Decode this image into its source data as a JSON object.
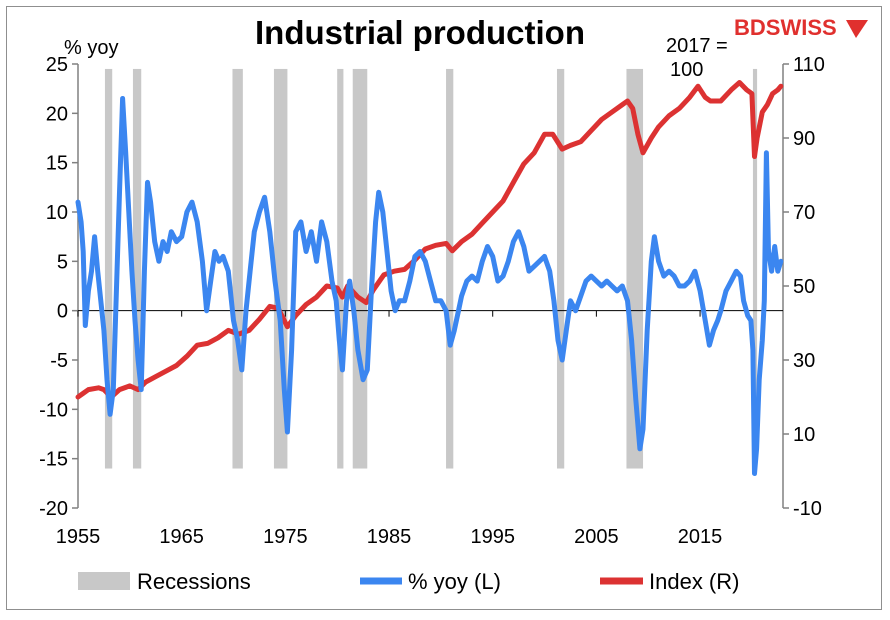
{
  "brand": {
    "name_bd": "BD",
    "name_swiss": "SWISS",
    "color": "#e0302e"
  },
  "colors": {
    "recession": "#c8c8c8",
    "yoy": "#3b86f0",
    "index": "#dc3232",
    "axis": "#808080"
  },
  "chart_data": {
    "type": "line",
    "title": "Industrial production",
    "left_axis": {
      "label": "% yoy",
      "ylim": [
        -20,
        25
      ],
      "ticks": [
        "25",
        "20",
        "15",
        "10",
        "5",
        "0",
        "-5",
        "-10",
        "-15",
        "-20"
      ]
    },
    "right_axis": {
      "label_line1": "2017 =",
      "label_line2": "100",
      "ylim": [
        -10,
        110
      ],
      "ticks": [
        "110",
        "90",
        "70",
        "50",
        "30",
        "10",
        "-10"
      ]
    },
    "xlim": [
      1955,
      2023
    ],
    "x_ticks": [
      "1955",
      "1965",
      "1975",
      "1985",
      "1995",
      "2005",
      "2015"
    ],
    "x_tick_values": [
      1955,
      1965,
      1975,
      1985,
      1995,
      2005,
      2015
    ],
    "recessions": [
      [
        1957.6,
        1958.3
      ],
      [
        1960.3,
        1961.1
      ],
      [
        1969.9,
        1970.9
      ],
      [
        1973.9,
        1975.2
      ],
      [
        1980.0,
        1980.6
      ],
      [
        1981.5,
        1982.9
      ],
      [
        1990.5,
        1991.2
      ],
      [
        2001.2,
        2001.9
      ],
      [
        2007.9,
        2009.5
      ],
      [
        2020.1,
        2020.5
      ]
    ],
    "legend": {
      "recessions": "Recessions",
      "yoy": "% yoy (L)",
      "index": "Index (R)"
    },
    "series": [
      {
        "name": "% yoy (L)",
        "axis": "left",
        "points": [
          [
            1955.0,
            11
          ],
          [
            1955.3,
            9
          ],
          [
            1955.5,
            6
          ],
          [
            1955.7,
            -1.5
          ],
          [
            1956.0,
            2
          ],
          [
            1956.3,
            4
          ],
          [
            1956.6,
            7.5
          ],
          [
            1956.9,
            4
          ],
          [
            1957.2,
            1
          ],
          [
            1957.5,
            -2
          ],
          [
            1957.8,
            -7
          ],
          [
            1958.1,
            -10.5
          ],
          [
            1958.4,
            -8
          ],
          [
            1958.7,
            2
          ],
          [
            1959.0,
            12
          ],
          [
            1959.3,
            21.5
          ],
          [
            1959.6,
            16
          ],
          [
            1959.9,
            10
          ],
          [
            1960.2,
            4
          ],
          [
            1960.5,
            -1
          ],
          [
            1960.8,
            -5
          ],
          [
            1961.1,
            -8
          ],
          [
            1961.4,
            4
          ],
          [
            1961.7,
            13
          ],
          [
            1962.0,
            11
          ],
          [
            1962.4,
            7
          ],
          [
            1962.8,
            5
          ],
          [
            1963.2,
            7
          ],
          [
            1963.6,
            6
          ],
          [
            1964.0,
            8
          ],
          [
            1964.5,
            7
          ],
          [
            1965.0,
            7.5
          ],
          [
            1965.5,
            10
          ],
          [
            1966.0,
            11
          ],
          [
            1966.5,
            9
          ],
          [
            1967.0,
            5
          ],
          [
            1967.4,
            0
          ],
          [
            1967.8,
            3
          ],
          [
            1968.2,
            6
          ],
          [
            1968.6,
            5
          ],
          [
            1969.0,
            5.5
          ],
          [
            1969.5,
            4
          ],
          [
            1970.0,
            -1
          ],
          [
            1970.4,
            -3
          ],
          [
            1970.8,
            -6
          ],
          [
            1971.2,
            0
          ],
          [
            1971.6,
            4
          ],
          [
            1972.0,
            8
          ],
          [
            1972.5,
            10
          ],
          [
            1973.0,
            11.5
          ],
          [
            1973.5,
            8
          ],
          [
            1974.0,
            3
          ],
          [
            1974.5,
            -1
          ],
          [
            1974.9,
            -8
          ],
          [
            1975.2,
            -12.3
          ],
          [
            1975.6,
            -4
          ],
          [
            1976.0,
            8
          ],
          [
            1976.5,
            9
          ],
          [
            1977.0,
            6
          ],
          [
            1977.5,
            8
          ],
          [
            1978.0,
            5
          ],
          [
            1978.5,
            9
          ],
          [
            1979.0,
            7
          ],
          [
            1979.5,
            3
          ],
          [
            1979.9,
            1
          ],
          [
            1980.2,
            -3
          ],
          [
            1980.5,
            -6
          ],
          [
            1980.9,
            1
          ],
          [
            1981.2,
            3
          ],
          [
            1981.6,
            0
          ],
          [
            1982.0,
            -4
          ],
          [
            1982.5,
            -7
          ],
          [
            1982.9,
            -6
          ],
          [
            1983.3,
            2
          ],
          [
            1983.7,
            9
          ],
          [
            1984.0,
            12
          ],
          [
            1984.4,
            10
          ],
          [
            1984.8,
            6
          ],
          [
            1985.2,
            2
          ],
          [
            1985.6,
            0
          ],
          [
            1986.0,
            1
          ],
          [
            1986.5,
            1
          ],
          [
            1987.0,
            3
          ],
          [
            1987.5,
            5.5
          ],
          [
            1988.0,
            6
          ],
          [
            1988.5,
            5
          ],
          [
            1989.0,
            3
          ],
          [
            1989.5,
            1
          ],
          [
            1990.0,
            1
          ],
          [
            1990.5,
            0
          ],
          [
            1990.9,
            -3.5
          ],
          [
            1991.3,
            -2
          ],
          [
            1991.7,
            0
          ],
          [
            1992.0,
            1.5
          ],
          [
            1992.5,
            3
          ],
          [
            1993.0,
            3.5
          ],
          [
            1993.5,
            3
          ],
          [
            1994.0,
            5
          ],
          [
            1994.5,
            6.5
          ],
          [
            1995.0,
            5.5
          ],
          [
            1995.5,
            3
          ],
          [
            1996.0,
            3.5
          ],
          [
            1996.5,
            5
          ],
          [
            1997.0,
            7
          ],
          [
            1997.5,
            8
          ],
          [
            1998.0,
            6.5
          ],
          [
            1998.5,
            4
          ],
          [
            1999.0,
            4.5
          ],
          [
            1999.5,
            5
          ],
          [
            2000.0,
            5.5
          ],
          [
            2000.5,
            4
          ],
          [
            2000.9,
            1
          ],
          [
            2001.3,
            -3
          ],
          [
            2001.7,
            -5
          ],
          [
            2002.1,
            -2
          ],
          [
            2002.5,
            1
          ],
          [
            2003.0,
            0
          ],
          [
            2003.5,
            1.5
          ],
          [
            2004.0,
            3
          ],
          [
            2004.5,
            3.5
          ],
          [
            2005.0,
            3
          ],
          [
            2005.5,
            2.5
          ],
          [
            2006.0,
            3
          ],
          [
            2006.5,
            2.5
          ],
          [
            2007.0,
            2
          ],
          [
            2007.5,
            2.5
          ],
          [
            2008.0,
            1
          ],
          [
            2008.4,
            -3
          ],
          [
            2008.8,
            -9
          ],
          [
            2009.2,
            -14
          ],
          [
            2009.5,
            -12
          ],
          [
            2009.9,
            -2
          ],
          [
            2010.3,
            5
          ],
          [
            2010.6,
            7.5
          ],
          [
            2011.0,
            5
          ],
          [
            2011.5,
            3.5
          ],
          [
            2012.0,
            4
          ],
          [
            2012.5,
            3.5
          ],
          [
            2013.0,
            2.5
          ],
          [
            2013.5,
            2.5
          ],
          [
            2014.0,
            3
          ],
          [
            2014.5,
            4
          ],
          [
            2015.0,
            2
          ],
          [
            2015.5,
            -1
          ],
          [
            2015.9,
            -3.5
          ],
          [
            2016.3,
            -2
          ],
          [
            2016.7,
            -1
          ],
          [
            2017.0,
            0
          ],
          [
            2017.5,
            2
          ],
          [
            2018.0,
            3
          ],
          [
            2018.5,
            4
          ],
          [
            2018.9,
            3.5
          ],
          [
            2019.2,
            1
          ],
          [
            2019.6,
            -0.5
          ],
          [
            2019.9,
            -1
          ],
          [
            2020.1,
            -4
          ],
          [
            2020.25,
            -16.5
          ],
          [
            2020.45,
            -14
          ],
          [
            2020.7,
            -7
          ],
          [
            2021.0,
            -3
          ],
          [
            2021.2,
            1
          ],
          [
            2021.4,
            16
          ],
          [
            2021.6,
            6
          ],
          [
            2021.9,
            4
          ],
          [
            2022.2,
            6.5
          ],
          [
            2022.5,
            4
          ],
          [
            2022.8,
            5
          ]
        ]
      },
      {
        "name": "Index (R)",
        "axis": "right",
        "points": [
          [
            1955.0,
            20
          ],
          [
            1955.5,
            21
          ],
          [
            1956.0,
            22
          ],
          [
            1957.0,
            22.5
          ],
          [
            1957.5,
            22
          ],
          [
            1958.2,
            20
          ],
          [
            1959.0,
            22
          ],
          [
            1960.0,
            23
          ],
          [
            1960.8,
            22
          ],
          [
            1961.5,
            24
          ],
          [
            1962.5,
            25.5
          ],
          [
            1963.5,
            27
          ],
          [
            1964.5,
            28.5
          ],
          [
            1965.5,
            31
          ],
          [
            1966.5,
            34
          ],
          [
            1967.5,
            34.5
          ],
          [
            1968.5,
            36
          ],
          [
            1969.5,
            38
          ],
          [
            1970.5,
            37
          ],
          [
            1971.5,
            38
          ],
          [
            1972.5,
            41
          ],
          [
            1973.5,
            44.5
          ],
          [
            1974.3,
            44
          ],
          [
            1975.2,
            39
          ],
          [
            1976.0,
            42
          ],
          [
            1977.0,
            45
          ],
          [
            1978.0,
            47
          ],
          [
            1979.0,
            50
          ],
          [
            1980.0,
            49.5
          ],
          [
            1980.5,
            47
          ],
          [
            1981.0,
            50
          ],
          [
            1982.0,
            47
          ],
          [
            1982.8,
            45.5
          ],
          [
            1983.5,
            49
          ],
          [
            1984.5,
            53
          ],
          [
            1985.5,
            54
          ],
          [
            1986.5,
            54.5
          ],
          [
            1987.5,
            57
          ],
          [
            1988.5,
            60
          ],
          [
            1989.5,
            61
          ],
          [
            1990.5,
            61.5
          ],
          [
            1991.1,
            59.5
          ],
          [
            1992.0,
            62
          ],
          [
            1993.0,
            64
          ],
          [
            1994.0,
            67
          ],
          [
            1995.0,
            70
          ],
          [
            1996.0,
            73
          ],
          [
            1997.0,
            78
          ],
          [
            1998.0,
            83
          ],
          [
            1999.0,
            86
          ],
          [
            2000.0,
            91
          ],
          [
            2000.8,
            91
          ],
          [
            2001.7,
            87
          ],
          [
            2002.5,
            88
          ],
          [
            2003.5,
            89
          ],
          [
            2004.5,
            92
          ],
          [
            2005.5,
            95
          ],
          [
            2006.5,
            97
          ],
          [
            2007.5,
            99
          ],
          [
            2008.0,
            100
          ],
          [
            2008.5,
            98
          ],
          [
            2009.0,
            91
          ],
          [
            2009.5,
            86
          ],
          [
            2010.3,
            90
          ],
          [
            2011.0,
            93
          ],
          [
            2012.0,
            96
          ],
          [
            2013.0,
            98
          ],
          [
            2014.0,
            101
          ],
          [
            2014.8,
            104
          ],
          [
            2015.5,
            101
          ],
          [
            2016.0,
            100
          ],
          [
            2017.0,
            100
          ],
          [
            2018.0,
            103
          ],
          [
            2018.8,
            105
          ],
          [
            2019.5,
            103
          ],
          [
            2020.0,
            102
          ],
          [
            2020.25,
            85
          ],
          [
            2020.5,
            90
          ],
          [
            2021.0,
            97
          ],
          [
            2021.5,
            99
          ],
          [
            2022.0,
            102
          ],
          [
            2022.5,
            103
          ],
          [
            2022.8,
            104
          ]
        ]
      }
    ]
  }
}
